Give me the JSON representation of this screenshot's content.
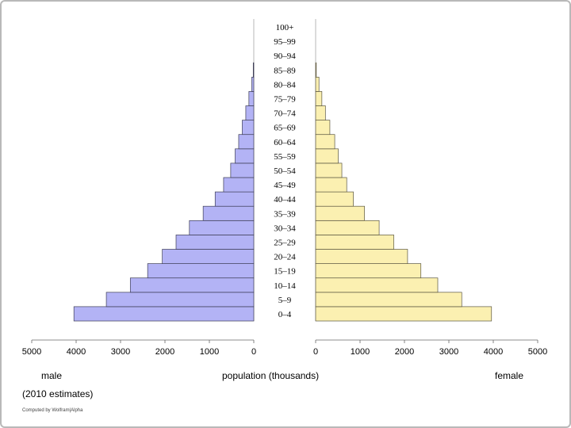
{
  "chart_data": {
    "type": "bar",
    "orientation": "horizontal",
    "categories": [
      "0–4",
      "5–9",
      "10–14",
      "15–19",
      "20–24",
      "25–29",
      "30–34",
      "35–39",
      "40–44",
      "45–49",
      "50–54",
      "55–59",
      "60–64",
      "65–69",
      "70–74",
      "75–79",
      "80–84",
      "85–89",
      "90–94",
      "95–99",
      "100+"
    ],
    "series": [
      {
        "name": "male",
        "color": "#b3b3f5",
        "values": [
          4050,
          3320,
          2780,
          2390,
          2060,
          1750,
          1450,
          1140,
          870,
          680,
          520,
          420,
          340,
          260,
          180,
          110,
          45,
          12,
          2,
          0.5,
          0
        ]
      },
      {
        "name": "female",
        "color": "#fbf0b1",
        "values": [
          3960,
          3290,
          2750,
          2370,
          2070,
          1760,
          1430,
          1100,
          850,
          700,
          590,
          510,
          430,
          320,
          220,
          140,
          75,
          15,
          3,
          1,
          0
        ]
      }
    ],
    "male_axis": {
      "ticks": [
        5000,
        4000,
        3000,
        2000,
        1000,
        0
      ],
      "xlim": [
        0,
        5000
      ],
      "direction": "reversed"
    },
    "female_axis": {
      "ticks": [
        0,
        1000,
        2000,
        3000,
        4000,
        5000
      ],
      "xlim": [
        0,
        5000
      ]
    },
    "xlabel": "population (thousands)",
    "left_label": "male",
    "right_label": "female",
    "subtitle": "(2010 estimates)",
    "credit": "Computed by Wolfram|Alpha",
    "grid": false
  }
}
